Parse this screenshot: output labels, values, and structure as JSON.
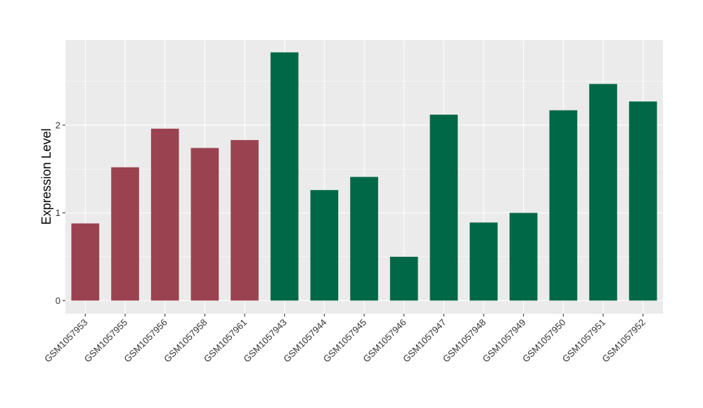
{
  "chart_data": {
    "type": "bar",
    "ylabel": "Expression Level",
    "xlabel": "",
    "ylim": [
      -0.15,
      2.97
    ],
    "yticks": [
      0,
      1,
      2
    ],
    "categories": [
      "GSM1057953",
      "GSM1057955",
      "GSM1057956",
      "GSM1057958",
      "GSM1057961",
      "GSM1057943",
      "GSM1057944",
      "GSM1057945",
      "GSM1057946",
      "GSM1057947",
      "GSM1057948",
      "GSM1057949",
      "GSM1057950",
      "GSM1057951",
      "GSM1057952"
    ],
    "values": [
      0.88,
      1.52,
      1.96,
      1.74,
      1.83,
      2.83,
      1.26,
      1.41,
      0.5,
      2.12,
      0.89,
      1.0,
      2.17,
      2.47,
      2.27
    ],
    "groups": [
      0,
      0,
      0,
      0,
      0,
      1,
      1,
      1,
      1,
      1,
      1,
      1,
      1,
      1,
      1
    ],
    "group_colors": [
      "#9b4250",
      "#006846"
    ],
    "panel_background": "#ebebeb",
    "gridline_color": "#ffffff",
    "grid": true,
    "legend": "none"
  }
}
